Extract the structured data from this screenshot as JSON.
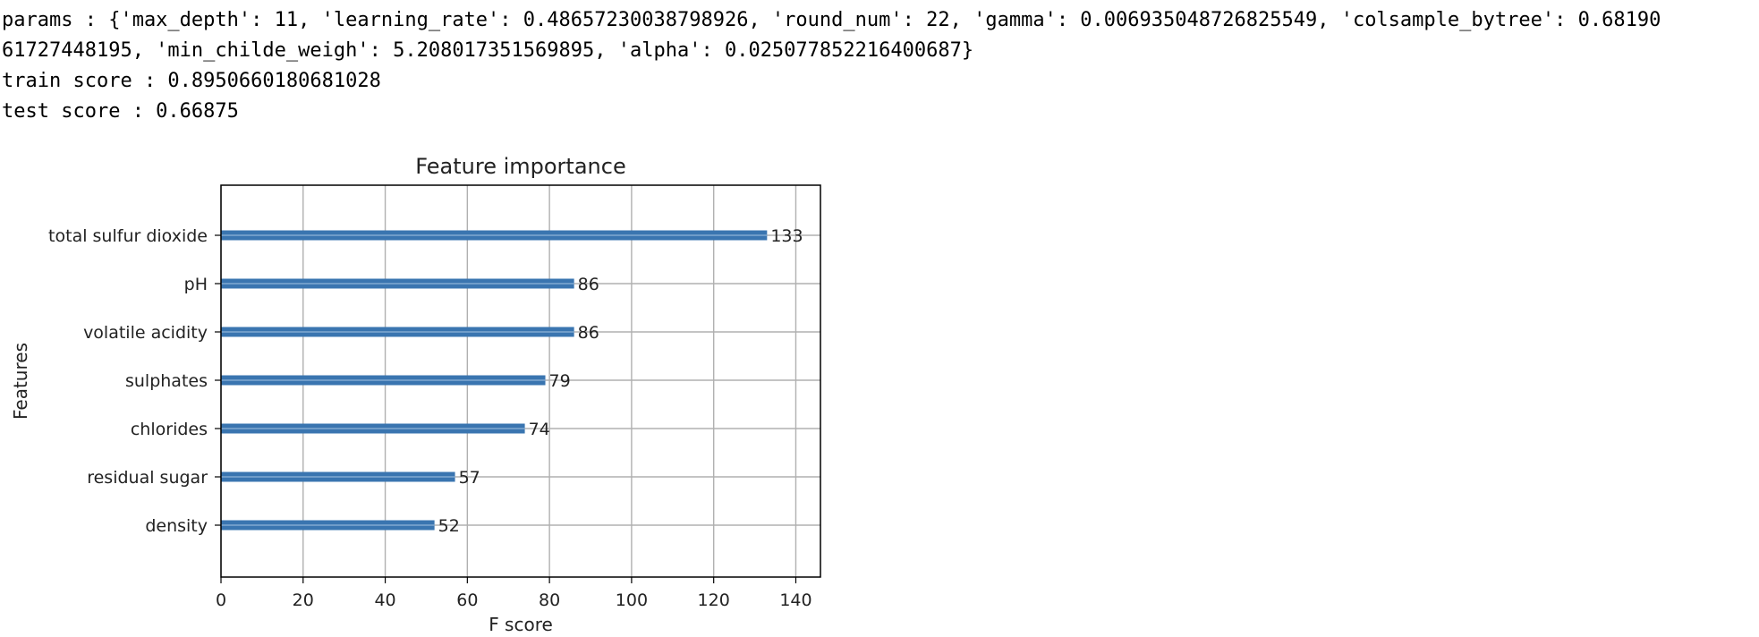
{
  "output": {
    "params_line_1": "params : {'max_depth': 11, 'learning_rate': 0.48657230038798926, 'round_num': 22, 'gamma': 0.006935048726825549, 'colsample_bytree': 0.68190",
    "params_line_2": "61727448195, 'min_childe_weigh': 5.208017351569895, 'alpha': 0.025077852216400687}",
    "train_score": "train score : 0.8950660180681028",
    "test_score": "test score : 0.66875"
  },
  "colors": {
    "bar": "#3a75b0",
    "grid": "#b0b0b0",
    "axis": "#000000"
  },
  "chart_data": {
    "type": "bar",
    "orientation": "horizontal",
    "title": "Feature importance",
    "xlabel": "F score",
    "ylabel": "Features",
    "xlim": [
      0,
      146
    ],
    "xticks": [
      0,
      20,
      40,
      60,
      80,
      100,
      120,
      140
    ],
    "grid": true,
    "categories": [
      "total sulfur dioxide",
      "pH",
      "volatile acidity",
      "sulphates",
      "chlorides",
      "residual sugar",
      "density"
    ],
    "values": [
      133,
      86,
      86,
      79,
      74,
      57,
      52
    ]
  }
}
